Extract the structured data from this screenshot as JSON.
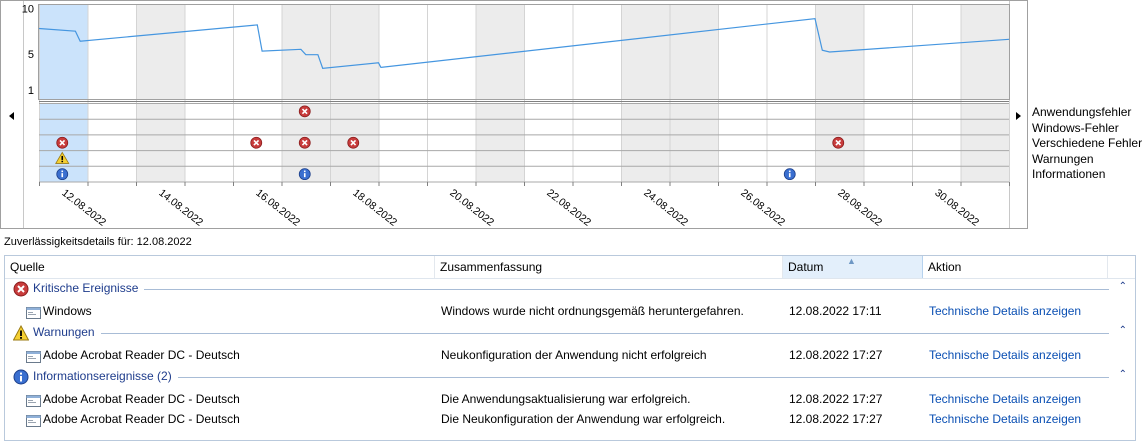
{
  "chart": {
    "y_ticks": [
      "10",
      "5",
      "1"
    ],
    "dates": [
      "12.08.2022",
      "14.08.2022",
      "16.08.2022",
      "18.08.2022",
      "20.08.2022",
      "22.08.2022",
      "24.08.2022",
      "26.08.2022",
      "28.08.2022",
      "30.08.2022"
    ],
    "categories": [
      "Anwendungsfehler",
      "Windows-Fehler",
      "Verschiedene Fehler",
      "Warnungen",
      "Informationen"
    ],
    "stability_points": [
      [
        0,
        7.8
      ],
      [
        0.75,
        7.5
      ],
      [
        0.85,
        6.4
      ],
      [
        4.5,
        8.2
      ],
      [
        4.6,
        5.3
      ],
      [
        5.4,
        5.5
      ],
      [
        5.5,
        4.9
      ],
      [
        5.75,
        4.9
      ],
      [
        5.85,
        3.4
      ],
      [
        7.0,
        4.0
      ],
      [
        7.05,
        3.5
      ],
      [
        16.0,
        8.9
      ],
      [
        16.15,
        5.4
      ],
      [
        16.3,
        5.2
      ],
      [
        20.0,
        6.6
      ]
    ],
    "events": [
      {
        "day": 0,
        "type": "error",
        "row": 2
      },
      {
        "day": 0,
        "type": "warning",
        "row": 3
      },
      {
        "day": 0,
        "type": "info",
        "row": 4
      },
      {
        "day": 4,
        "type": "error",
        "row": 2
      },
      {
        "day": 5,
        "type": "error",
        "row": 0
      },
      {
        "day": 5,
        "type": "error",
        "row": 2
      },
      {
        "day": 5,
        "type": "info",
        "row": 4
      },
      {
        "day": 6,
        "type": "error",
        "row": 2
      },
      {
        "day": 15,
        "type": "info",
        "row": 4
      },
      {
        "day": 16,
        "type": "error",
        "row": 2
      }
    ]
  },
  "details_label": "Zuverlässigkeitsdetails für: 12.08.2022",
  "table": {
    "columns": [
      "Quelle",
      "Zusammenfassung",
      "Datum",
      "Aktion"
    ],
    "groups": [
      {
        "label": "Kritische Ereignisse",
        "icon": "error-icon",
        "rows": [
          {
            "source": "Windows",
            "summary": "Windows wurde nicht ordnungsgemäß heruntergefahren.",
            "date": "12.08.2022 17:11",
            "action": "Technische Details anzeigen"
          }
        ]
      },
      {
        "label": "Warnungen",
        "icon": "warning-icon",
        "rows": [
          {
            "source": "Adobe Acrobat Reader DC - Deutsch",
            "summary": "Neukonfiguration der Anwendung nicht erfolgreich",
            "date": "12.08.2022 17:27",
            "action": "Technische Details anzeigen"
          }
        ]
      },
      {
        "label": "Informationsereignisse (2)",
        "icon": "info-icon",
        "rows": [
          {
            "source": "Adobe Acrobat Reader DC - Deutsch",
            "summary": "Die Anwendungsaktualisierung war erfolgreich.",
            "date": "12.08.2022 17:27",
            "action": "Technische Details anzeigen"
          },
          {
            "source": "Adobe Acrobat Reader DC - Deutsch",
            "summary": "Die Neukonfiguration der Anwendung war erfolgreich.",
            "date": "12.08.2022 17:27",
            "action": "Technische Details anzeigen"
          }
        ]
      }
    ]
  }
}
